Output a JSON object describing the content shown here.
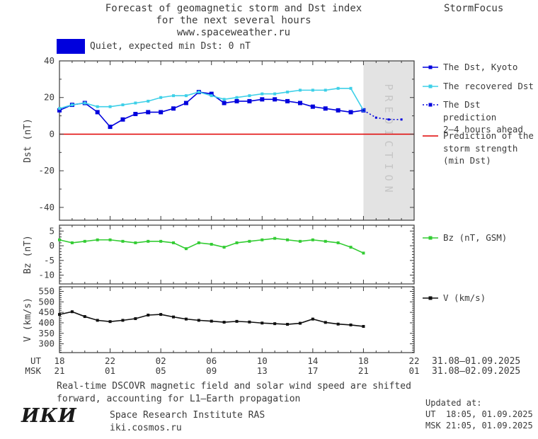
{
  "header": {
    "title_line1": "Forecast of geomagnetic storm and Dst index",
    "title_line2": "for the next several hours",
    "title_line3": "www.spaceweather.ru",
    "brand": "StormFocus",
    "status_label": "Quiet, expected min Dst: 0 nT",
    "status_color": "#0000dd"
  },
  "chart_data": [
    {
      "type": "line",
      "name": "dst",
      "ylabel": "Dst (nT)",
      "xlim": [
        0,
        28
      ],
      "ylim": [
        -47,
        40
      ],
      "yticks": [
        40,
        20,
        0,
        -20,
        -40
      ],
      "yminor_step": 10,
      "series": [
        {
          "id": "dst-kyoto",
          "name": "The Dst, Kyoto",
          "color": "#0000dd",
          "marker_size": 6,
          "x_start": 0,
          "values": [
            13,
            16,
            17,
            12,
            4,
            8,
            11,
            12,
            12,
            14,
            17,
            23,
            22,
            17,
            18,
            18,
            19,
            19,
            18,
            17,
            15,
            14,
            13,
            12,
            13
          ]
        },
        {
          "id": "dst-recovered",
          "name": "The recovered Dst",
          "color": "#3ed0e8",
          "marker_size": 4,
          "x_start": 0,
          "values": [
            14,
            16,
            17,
            15,
            15,
            16,
            17,
            18,
            20,
            21,
            21,
            23,
            21,
            19,
            20,
            21,
            22,
            22,
            23,
            24,
            24,
            24,
            25,
            25,
            13
          ]
        },
        {
          "id": "dst-prediction",
          "name": "The Dst prediction 2–4 hours ahead",
          "color": "#0000dd",
          "line": "dotted",
          "marker_size": 3,
          "x_start": 24,
          "values": [
            13,
            9,
            8,
            8
          ]
        }
      ],
      "reference_line": {
        "value": 0,
        "color": "#e00000",
        "name": "Prediction of the storm strength (min Dst)"
      },
      "prediction_band": {
        "x_from": 24,
        "x_to": 28,
        "label": "PREDICTION",
        "fill": "#e3e3e3",
        "text_color": "#c6c6c6"
      }
    },
    {
      "type": "line",
      "name": "bz",
      "ylabel": "Bz (nT)",
      "xlim": [
        0,
        28
      ],
      "ylim": [
        -13,
        7
      ],
      "yticks": [
        5,
        0,
        -5,
        -10
      ],
      "yminor_step": 1,
      "series": [
        {
          "id": "bz-gsm",
          "name": "Bz (nT, GSM)",
          "color": "#33cc33",
          "marker_size": 4,
          "x_start": 0,
          "values": [
            2,
            1,
            1.5,
            2,
            2,
            1.5,
            1,
            1.5,
            1.5,
            1,
            -1,
            1,
            0.5,
            -0.5,
            1,
            1.5,
            2,
            2.5,
            2,
            1.5,
            2,
            1.5,
            1,
            -0.5,
            -2.5
          ]
        }
      ]
    },
    {
      "type": "line",
      "name": "v",
      "ylabel": "V (km/s)",
      "xlim": [
        0,
        28
      ],
      "ylim": [
        258,
        572
      ],
      "yticks": [
        550,
        500,
        450,
        400,
        350,
        300
      ],
      "yminor_step": 10,
      "series": [
        {
          "id": "solar-wind-speed",
          "name": "V (km/s)",
          "color": "#111111",
          "marker_size": 4,
          "x_start": 0,
          "values": [
            440,
            453,
            430,
            412,
            406,
            412,
            420,
            437,
            440,
            428,
            418,
            412,
            408,
            403,
            407,
            404,
            399,
            396,
            393,
            398,
            418,
            402,
            394,
            390,
            383
          ]
        }
      ]
    }
  ],
  "xaxis": {
    "ut_label": "UT",
    "msk_label": "MSK",
    "ut_ticks": [
      "18",
      "22",
      "02",
      "06",
      "10",
      "14",
      "18",
      "22"
    ],
    "msk_ticks": [
      "21",
      "01",
      "05",
      "09",
      "13",
      "17",
      "21",
      "01"
    ],
    "ut_date": "31.08—01.09.2025",
    "msk_date": "31.08—02.09.2025"
  },
  "legend": {
    "dst_kyoto": "The Dst, Kyoto",
    "recovered": "The recovered Dst",
    "prediction_l1": "The Dst prediction",
    "prediction_l2": "2–4 hours ahead",
    "storm_l1": "Prediction of the",
    "storm_l2": "storm strength",
    "storm_l3": "(min Dst)",
    "bz": "Bz (nT, GSM)",
    "v": "V (km/s)"
  },
  "footer": {
    "note_line1": "Real-time DSCOVR magnetic field and solar wind speed are shifted",
    "note_line2": "forward, accounting for L1—Earth propagation",
    "logo": "ИКИ",
    "institute": "Space Research Institute RAS",
    "site": "iki.cosmos.ru",
    "updated_label": "Updated at:",
    "updated_ut": "UT  18:05, 01.09.2025",
    "updated_msk": "MSK 21:05, 01.09.2025"
  }
}
